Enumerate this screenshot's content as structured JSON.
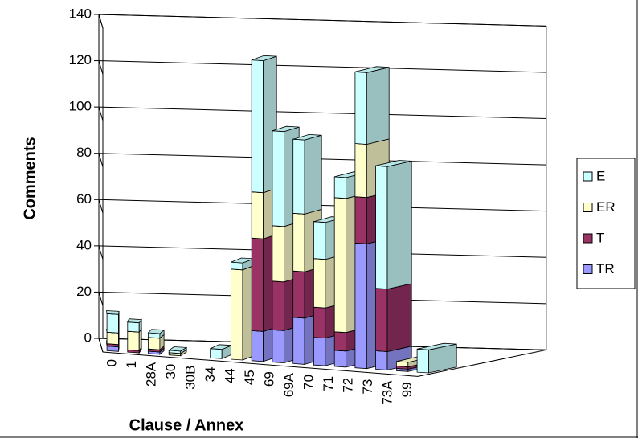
{
  "chart_data": {
    "type": "bar3d_stacked",
    "x_label": "Clause / Annex",
    "y_label": "Comments",
    "categories": [
      "0",
      "1",
      "28A",
      "30",
      "30B",
      "34",
      "44",
      "45",
      "69",
      "69A",
      "70",
      "71",
      "72",
      "73",
      "73A",
      "99"
    ],
    "series": [
      {
        "name": "TR",
        "color": "#9999ff",
        "values": [
          2,
          0,
          1,
          0,
          0,
          0,
          0,
          13,
          14,
          20,
          12,
          7,
          54,
          8,
          1,
          0
        ]
      },
      {
        "name": "T",
        "color": "#993366",
        "values": [
          1,
          1,
          1,
          0,
          0,
          0,
          0,
          40,
          21,
          20,
          13,
          8,
          20,
          27,
          1,
          0
        ]
      },
      {
        "name": "ER",
        "color": "#ffffcc",
        "values": [
          5,
          8,
          5,
          1,
          0,
          0,
          39,
          20,
          24,
          25,
          21,
          58,
          23,
          0,
          2,
          0
        ]
      },
      {
        "name": "E",
        "color": "#ccffff",
        "values": [
          8,
          4,
          2,
          1,
          0,
          4,
          3,
          57,
          41,
          32,
          16,
          9,
          31,
          53,
          0,
          10
        ]
      }
    ],
    "ylim": [
      0,
      140
    ],
    "yticks": [
      0,
      20,
      40,
      60,
      80,
      100,
      120,
      140
    ],
    "grid": true
  }
}
